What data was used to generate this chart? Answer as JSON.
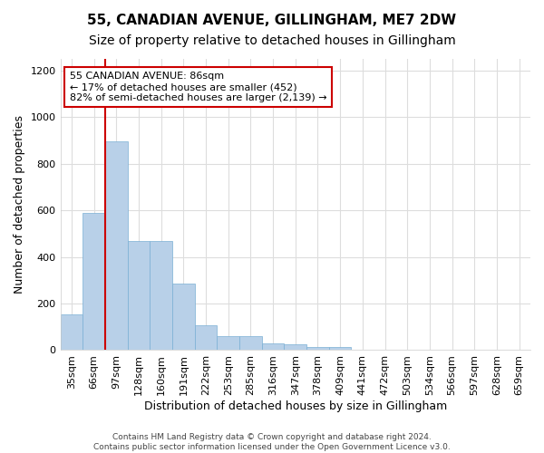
{
  "title": "55, CANADIAN AVENUE, GILLINGHAM, ME7 2DW",
  "subtitle": "Size of property relative to detached houses in Gillingham",
  "xlabel": "Distribution of detached houses by size in Gillingham",
  "ylabel": "Number of detached properties",
  "categories": [
    "35sqm",
    "66sqm",
    "97sqm",
    "128sqm",
    "160sqm",
    "191sqm",
    "222sqm",
    "253sqm",
    "285sqm",
    "316sqm",
    "347sqm",
    "378sqm",
    "409sqm",
    "441sqm",
    "472sqm",
    "503sqm",
    "534sqm",
    "566sqm",
    "597sqm",
    "628sqm",
    "659sqm"
  ],
  "values": [
    155,
    590,
    895,
    470,
    470,
    285,
    105,
    62,
    62,
    28,
    25,
    15,
    12,
    3,
    2,
    1,
    1,
    0,
    0,
    0,
    0
  ],
  "bar_color": "#b8d0e8",
  "bar_edge_color": "#7aafd4",
  "vline_color": "#cc0000",
  "vline_pos": 1.5,
  "annotation_text": "55 CANADIAN AVENUE: 86sqm\n← 17% of detached houses are smaller (452)\n82% of semi-detached houses are larger (2,139) →",
  "annotation_box_color": "#ffffff",
  "annotation_box_edge": "#cc0000",
  "ylim": [
    0,
    1250
  ],
  "yticks": [
    0,
    200,
    400,
    600,
    800,
    1000,
    1200
  ],
  "footnote": "Contains HM Land Registry data © Crown copyright and database right 2024.\nContains public sector information licensed under the Open Government Licence v3.0.",
  "bg_color": "#ffffff",
  "plot_bg_color": "#ffffff",
  "grid_color": "#dddddd",
  "title_fontsize": 11,
  "subtitle_fontsize": 10,
  "ylabel_fontsize": 9,
  "xlabel_fontsize": 9,
  "tick_fontsize": 8,
  "footnote_fontsize": 6.5
}
